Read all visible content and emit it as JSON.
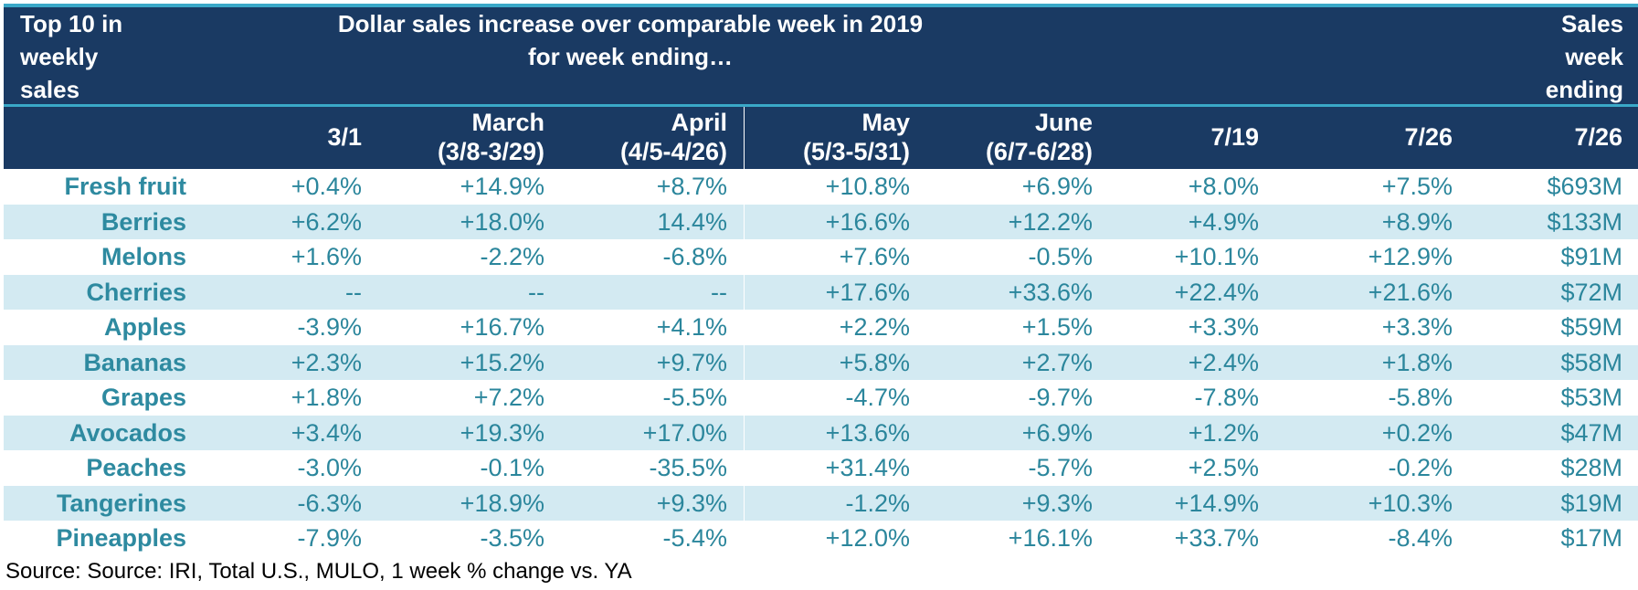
{
  "header": {
    "left": "Top 10 in\nweekly\nsales",
    "center": "Dollar sales increase over comparable week in 2019\nfor week ending…",
    "right": "Sales\nweek\nending"
  },
  "chart_data": {
    "type": "table",
    "columns": [
      "",
      "3/1",
      "March\n(3/8-3/29)",
      "April\n(4/5-4/26)",
      "May\n(5/3-5/31)",
      "June\n(6/7-6/28)",
      "7/19",
      "7/26",
      "7/26"
    ],
    "rows": [
      [
        "Fresh fruit",
        "+0.4%",
        "+14.9%",
        "+8.7%",
        "+10.8%",
        "+6.9%",
        "+8.0%",
        "+7.5%",
        "$693M"
      ],
      [
        "Berries",
        "+6.2%",
        "+18.0%",
        "14.4%",
        "+16.6%",
        "+12.2%",
        "+4.9%",
        "+8.9%",
        "$133M"
      ],
      [
        "Melons",
        "+1.6%",
        "-2.2%",
        "-6.8%",
        "+7.6%",
        "-0.5%",
        "+10.1%",
        "+12.9%",
        "$91M"
      ],
      [
        "Cherries",
        "--",
        "--",
        "--",
        "+17.6%",
        "+33.6%",
        "+22.4%",
        "+21.6%",
        "$72M"
      ],
      [
        "Apples",
        "-3.9%",
        "+16.7%",
        "+4.1%",
        "+2.2%",
        "+1.5%",
        "+3.3%",
        "+3.3%",
        "$59M"
      ],
      [
        "Bananas",
        "+2.3%",
        "+15.2%",
        "+9.7%",
        "+5.8%",
        "+2.7%",
        "+2.4%",
        "+1.8%",
        "$58M"
      ],
      [
        "Grapes",
        "+1.8%",
        "+7.2%",
        "-5.5%",
        "-4.7%",
        "-9.7%",
        "-7.8%",
        "-5.8%",
        "$53M"
      ],
      [
        "Avocados",
        "+3.4%",
        "+19.3%",
        "+17.0%",
        "+13.6%",
        "+6.9%",
        "+1.2%",
        "+0.2%",
        "$47M"
      ],
      [
        "Peaches",
        "-3.0%",
        "-0.1%",
        "-35.5%",
        "+31.4%",
        "-5.7%",
        "+2.5%",
        "-0.2%",
        "$28M"
      ],
      [
        "Tangerines",
        "-6.3%",
        "+18.9%",
        "+9.3%",
        "-1.2%",
        "+9.3%",
        "+14.9%",
        "+10.3%",
        "$19M"
      ],
      [
        "Pineapples",
        "-7.9%",
        "-3.5%",
        "-5.4%",
        "+12.0%",
        "+16.1%",
        "+33.7%",
        "-8.4%",
        "$17M"
      ]
    ]
  },
  "source": "Source: Source: IRI, Total U.S., MULO, 1 week % change vs. YA",
  "colors": {
    "header_bg": "#1a3a63",
    "accent_rule": "#3aa8c8",
    "band": "#d3eaf2",
    "text": "#2b869c"
  }
}
